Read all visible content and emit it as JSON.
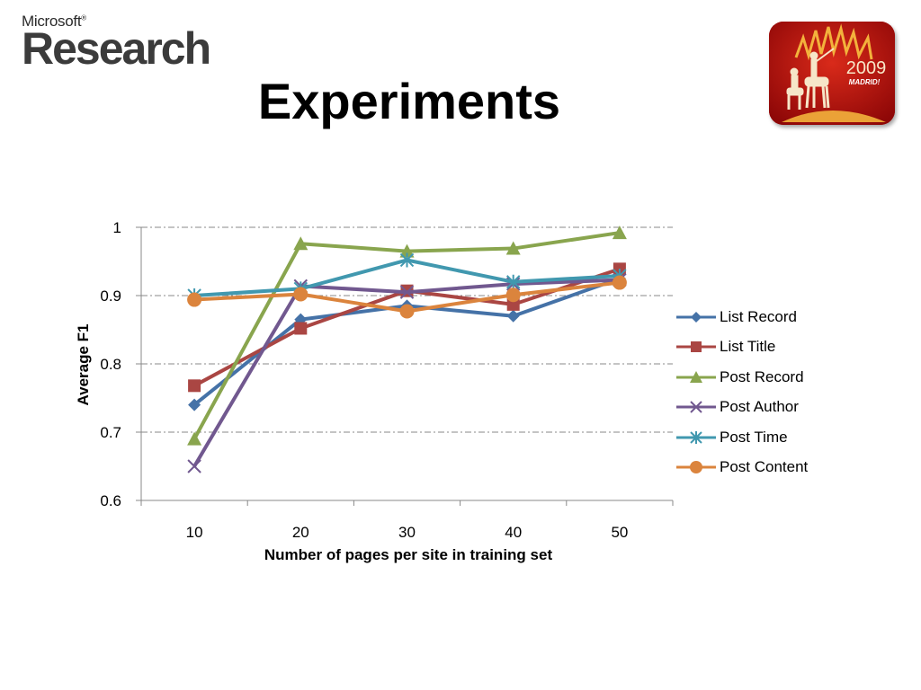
{
  "logo": {
    "line1": "Microsoft",
    "trademark": "®",
    "line2": "Research"
  },
  "slide": {
    "title": "Experiments"
  },
  "badge": {
    "year": "2009",
    "city": "MADRID!",
    "icon": "don-quixote-sunburst-icon"
  },
  "chart_data": {
    "type": "line",
    "title": "",
    "xlabel": "Number of pages per site in training set",
    "ylabel": "Average F1",
    "x": [
      10,
      20,
      30,
      40,
      50
    ],
    "x_tick_labels": [
      "10",
      "20",
      "30",
      "40",
      "50"
    ],
    "y_tick_labels": [
      "0.6",
      "0.7",
      "0.8",
      "0.9",
      "1"
    ],
    "ylim": [
      0.6,
      1.0
    ],
    "grid": "horizontal dash-dot",
    "legend_position": "right",
    "series": [
      {
        "name": "List Record",
        "marker": "diamond",
        "color": "#4572A7",
        "values": [
          0.74,
          0.865,
          0.885,
          0.87,
          0.925
        ]
      },
      {
        "name": "List Title",
        "marker": "square",
        "color": "#AA4643",
        "values": [
          0.768,
          0.852,
          0.907,
          0.887,
          0.939
        ]
      },
      {
        "name": "Post Record",
        "marker": "triangle",
        "color": "#89A54E",
        "values": [
          0.69,
          0.976,
          0.965,
          0.969,
          0.992
        ]
      },
      {
        "name": "Post Author",
        "marker": "x",
        "color": "#71588F",
        "values": [
          0.65,
          0.914,
          0.905,
          0.917,
          0.923
        ]
      },
      {
        "name": "Post Time",
        "marker": "star",
        "color": "#4198AF",
        "values": [
          0.9,
          0.91,
          0.952,
          0.92,
          0.929
        ]
      },
      {
        "name": "Post Content",
        "marker": "circle",
        "color": "#DB843D",
        "values": [
          0.894,
          0.902,
          0.877,
          0.901,
          0.919
        ]
      }
    ]
  }
}
